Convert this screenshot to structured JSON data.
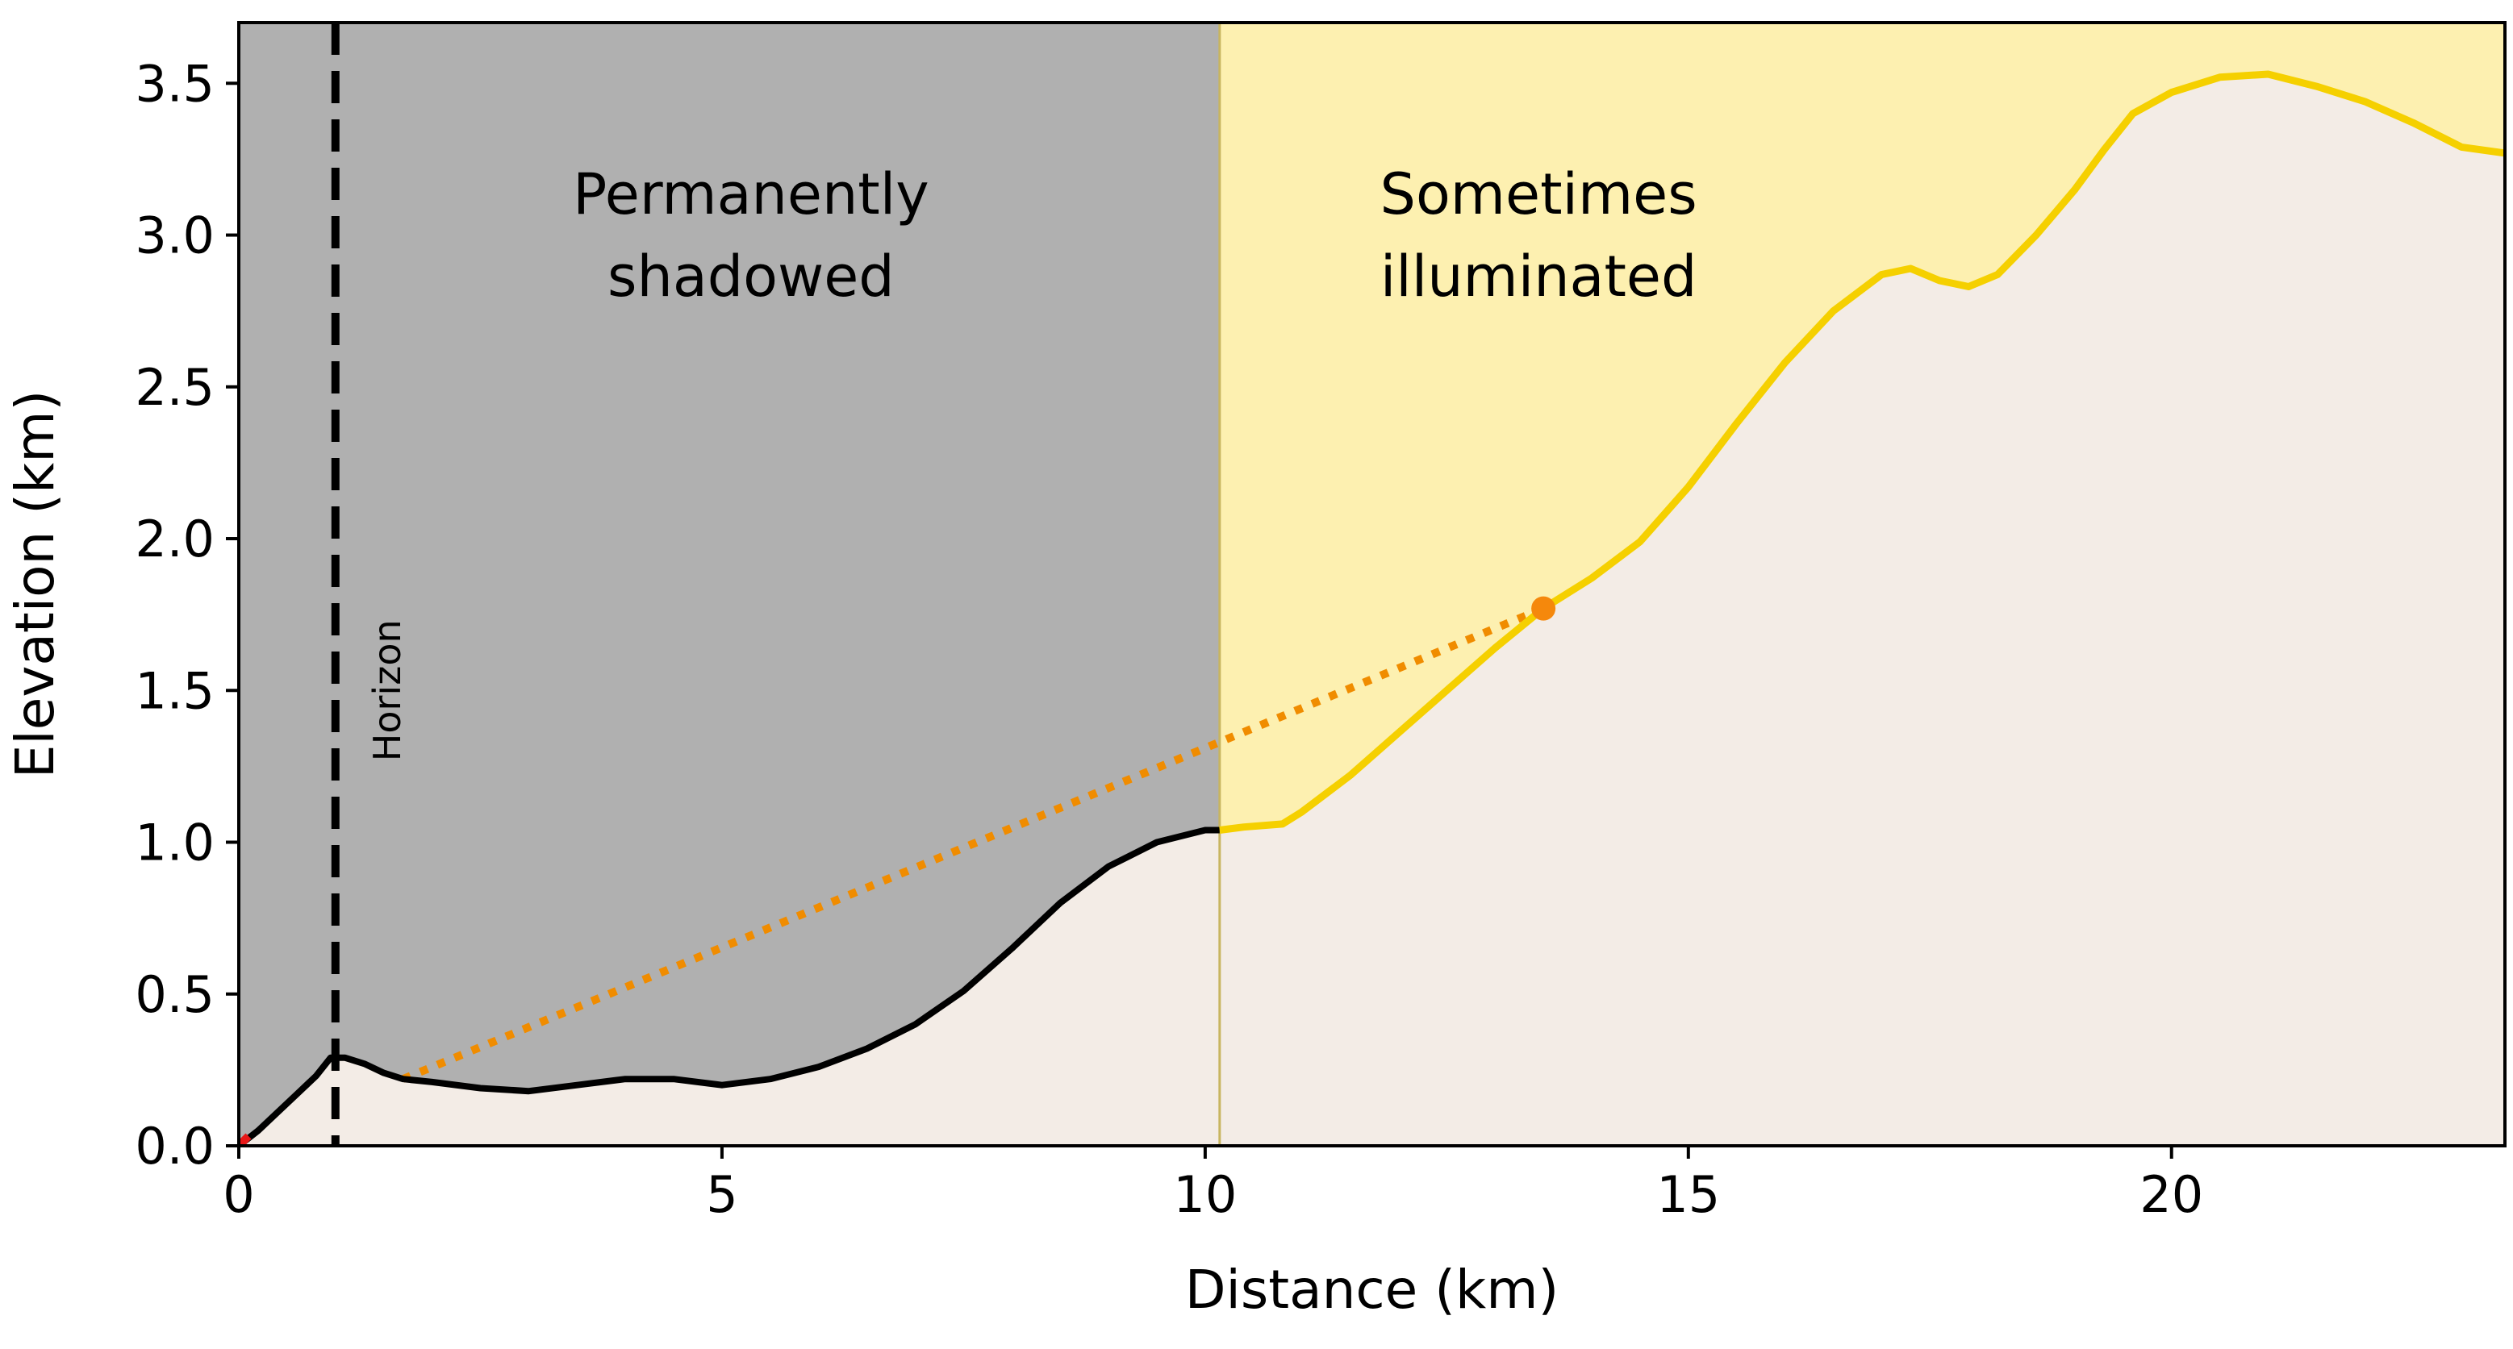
{
  "chart_data": {
    "type": "area",
    "title": "",
    "xlabel": "Distance (km)",
    "ylabel": "Elevation (km)",
    "xlim": [
      0,
      23.45
    ],
    "ylim": [
      0,
      3.7
    ],
    "xticks": [
      0,
      5,
      10,
      15,
      20
    ],
    "xtick_labels": [
      "0",
      "5",
      "10",
      "15",
      "20"
    ],
    "yticks": [
      0.0,
      0.5,
      1.0,
      1.5,
      2.0,
      2.5,
      3.0,
      3.5
    ],
    "ytick_labels": [
      "0.0",
      "0.5",
      "1.0",
      "1.5",
      "2.0",
      "2.5",
      "3.0",
      "3.5"
    ],
    "grid": false,
    "regions": [
      {
        "label": "Permanently\nshadowed",
        "x_range": [
          0,
          10.15
        ],
        "color": "#b0b0b0"
      },
      {
        "label": "Sometimes\nilluminated",
        "x_range": [
          10.15,
          23.45
        ],
        "color": "#fdf0b0"
      }
    ],
    "horizon": {
      "x": 1.0,
      "label": "Horizon"
    },
    "terrain_color": "#f3ece6",
    "shadowed_profile": {
      "color": "#000000",
      "x": [
        0,
        0.2,
        0.4,
        0.6,
        0.8,
        0.95,
        1.1,
        1.3,
        1.5,
        1.7,
        2.0,
        2.5,
        3.0,
        3.5,
        4.0,
        4.5,
        5.0,
        5.5,
        6.0,
        6.5,
        7.0,
        7.5,
        8.0,
        8.5,
        9.0,
        9.5,
        10.0,
        10.15
      ],
      "y": [
        0.0,
        0.05,
        0.11,
        0.17,
        0.23,
        0.29,
        0.29,
        0.27,
        0.24,
        0.22,
        0.21,
        0.19,
        0.18,
        0.2,
        0.22,
        0.22,
        0.2,
        0.22,
        0.26,
        0.32,
        0.4,
        0.51,
        0.65,
        0.8,
        0.92,
        1.0,
        1.04,
        1.04
      ]
    },
    "illuminated_profile": {
      "color": "#f5d000",
      "x": [
        10.15,
        10.4,
        10.8,
        11.0,
        11.5,
        12.0,
        12.5,
        13.0,
        13.5,
        14.0,
        14.5,
        15.0,
        15.5,
        16.0,
        16.5,
        17.0,
        17.3,
        17.6,
        17.9,
        18.2,
        18.6,
        19.0,
        19.3,
        19.6,
        20.0,
        20.5,
        21.0,
        21.5,
        22.0,
        22.5,
        23.0,
        23.45
      ],
      "y": [
        1.04,
        1.05,
        1.06,
        1.1,
        1.22,
        1.36,
        1.5,
        1.64,
        1.77,
        1.87,
        1.99,
        2.17,
        2.38,
        2.58,
        2.75,
        2.87,
        2.89,
        2.85,
        2.83,
        2.87,
        3.0,
        3.15,
        3.28,
        3.4,
        3.47,
        3.52,
        3.53,
        3.49,
        3.44,
        3.37,
        3.29,
        3.27
      ]
    },
    "line_of_sight": {
      "color": "#f08c00",
      "style": "dotted",
      "x": [
        1.7,
        13.5
      ],
      "y": [
        0.22,
        1.77
      ]
    },
    "observer": {
      "x": 0,
      "y": 0,
      "color": "#e81818"
    },
    "target": {
      "x": 13.5,
      "y": 1.77,
      "color": "#f5880c"
    }
  }
}
